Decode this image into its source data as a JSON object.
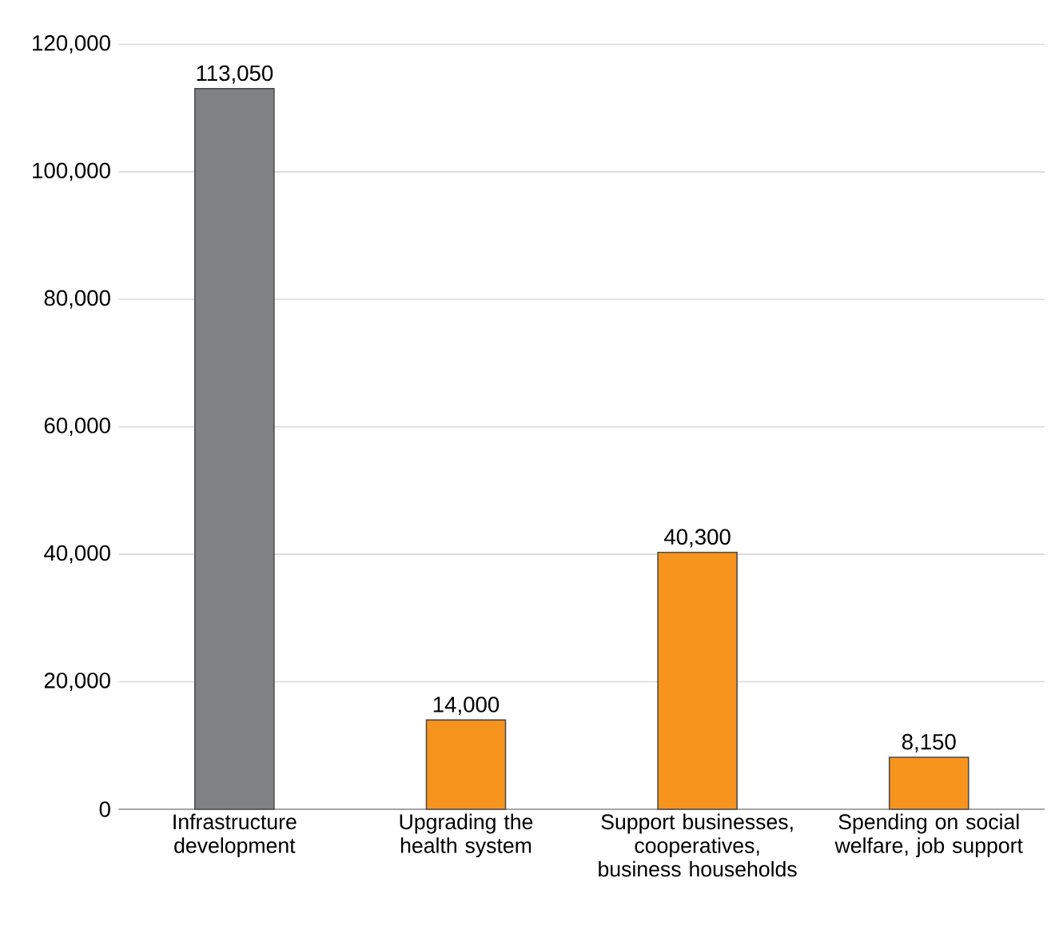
{
  "chart_data": {
    "type": "bar",
    "categories": [
      "Infrastructure development",
      "Upgrading the health system",
      "Support businesses, cooperatives, business households",
      "Spending on social welfare, job support"
    ],
    "values": [
      113050,
      14000,
      40300,
      8150
    ],
    "colors": [
      "#808184",
      "#f7941d",
      "#f7941d",
      "#f7941d"
    ],
    "value_labels": [
      "113,050",
      "14,000",
      "40,300",
      "8,150"
    ],
    "ylim": [
      0,
      120000
    ],
    "yticks": [
      {
        "value": 0,
        "label": "0"
      },
      {
        "value": 20000,
        "label": "20,000"
      },
      {
        "value": 40000,
        "label": "40,000"
      },
      {
        "value": 60000,
        "label": "60,000"
      },
      {
        "value": 80000,
        "label": "80,000"
      },
      {
        "value": 100000,
        "label": "100,000"
      },
      {
        "value": 120000,
        "label": "120,000"
      }
    ],
    "grid": "y"
  }
}
